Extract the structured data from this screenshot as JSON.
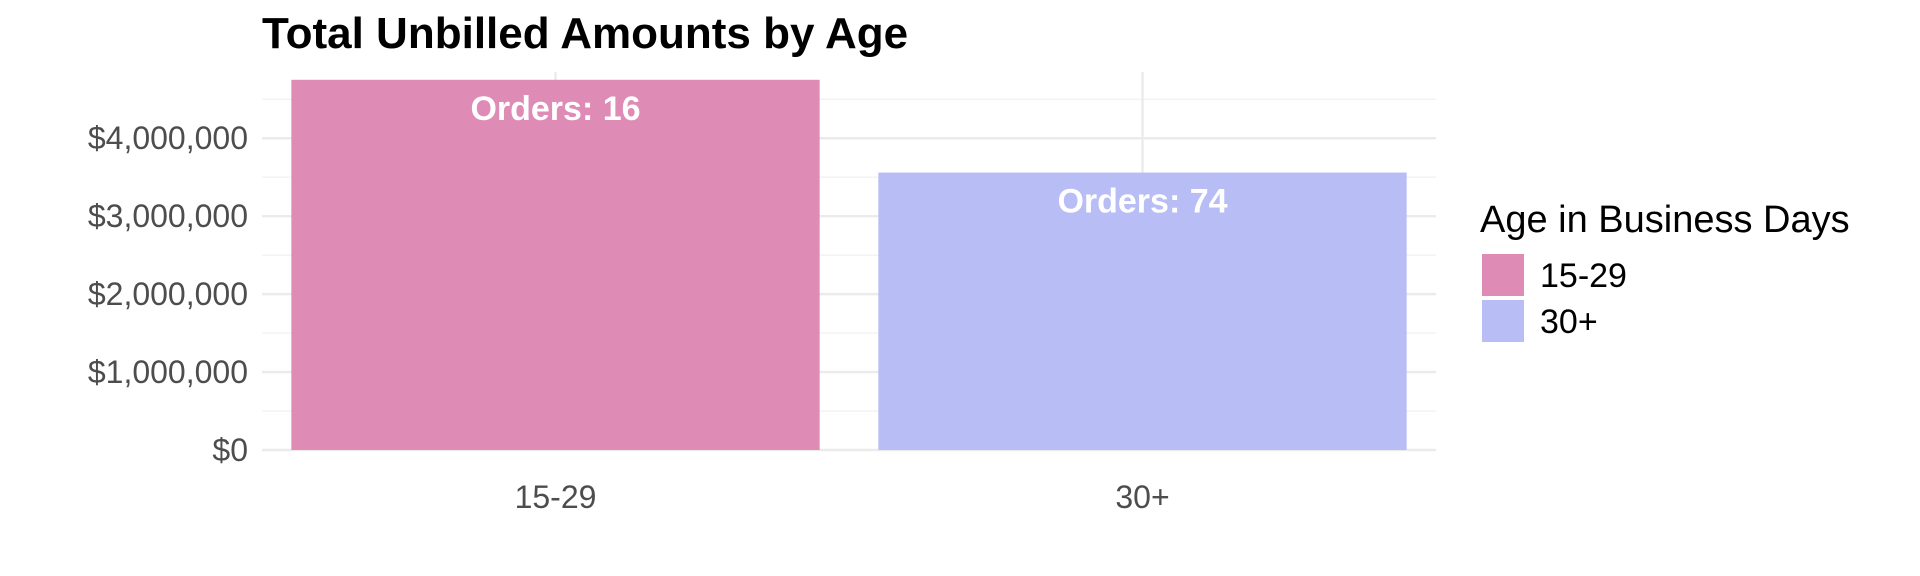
{
  "chart_data": {
    "type": "bar",
    "title": "Total Unbilled Amounts by Age",
    "xlabel": "",
    "ylabel": "",
    "categories": [
      "15-29",
      "30+"
    ],
    "values": [
      4750000,
      3560000
    ],
    "bar_labels": [
      "Orders: 16",
      "Orders: 74"
    ],
    "colors": [
      "#de8bb6",
      "#b8bef5"
    ],
    "ylim": [
      0,
      4850000
    ],
    "y_ticks": [
      0,
      1000000,
      2000000,
      3000000,
      4000000
    ],
    "y_tick_labels": [
      "$0",
      "$1,000,000",
      "$2,000,000",
      "$3,000,000",
      "$4,000,000"
    ],
    "grid": true,
    "legend": {
      "title": "Age in Business Days",
      "placement": "right",
      "entries": [
        "15-29",
        "30+"
      ]
    }
  }
}
